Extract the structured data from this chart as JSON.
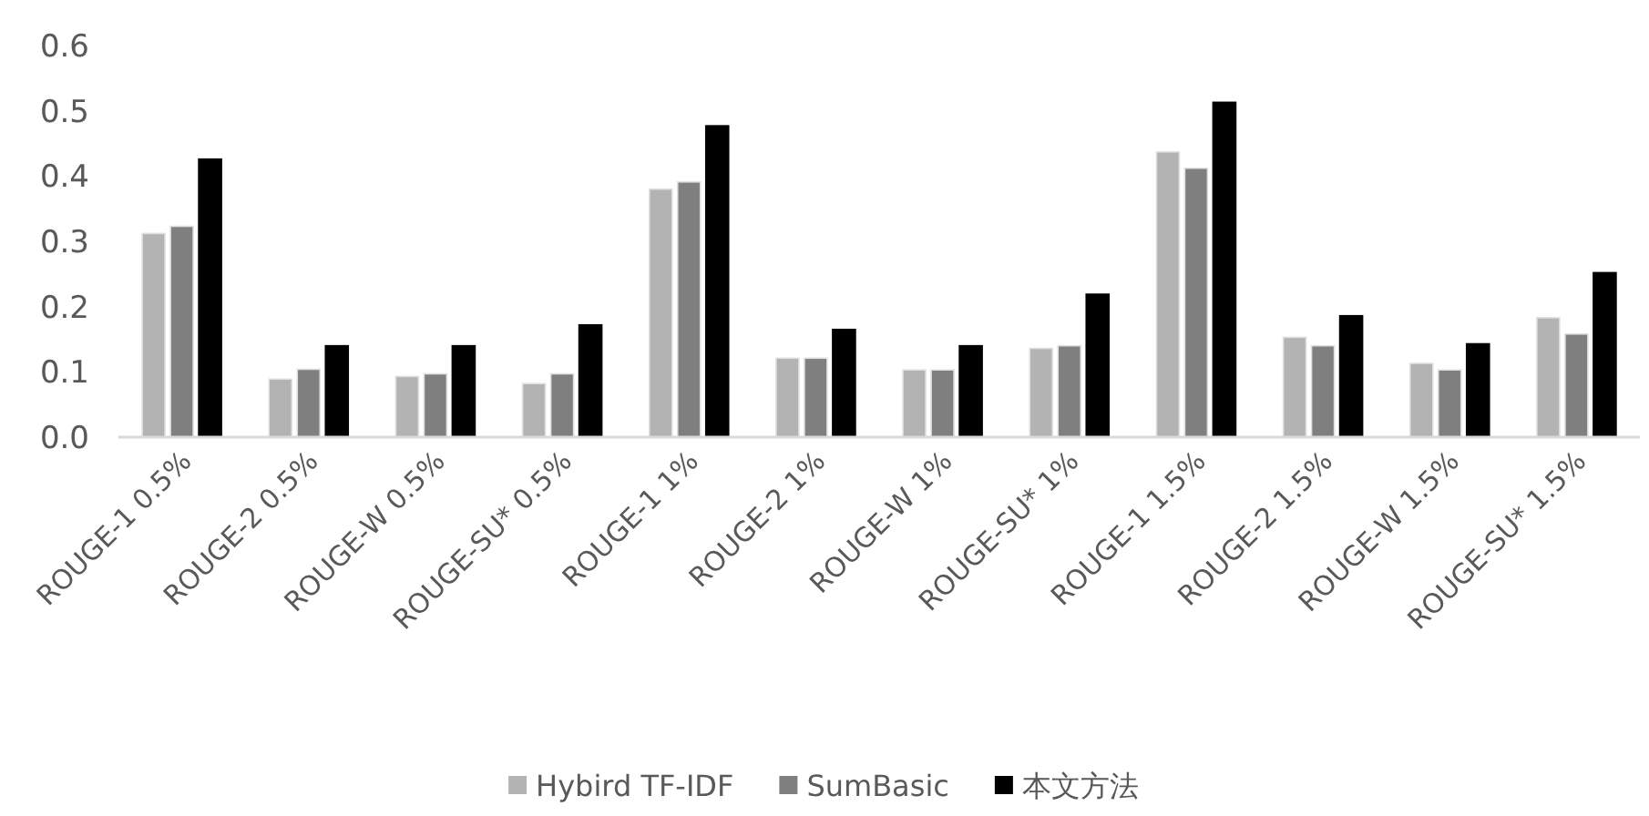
{
  "chart_data": {
    "type": "bar",
    "categories": [
      "ROUGE-1 0.5%",
      "ROUGE-2 0.5%",
      "ROUGE-W 0.5%",
      "ROUGE-SU* 0.5%",
      "ROUGE-1 1%",
      "ROUGE-2 1%",
      "ROUGE-W 1%",
      "ROUGE-SU* 1%",
      "ROUGE-1 1.5%",
      "ROUGE-2 1.5%",
      "ROUGE-W 1.5%",
      "ROUGE-SU* 1.5%"
    ],
    "series": [
      {
        "name": "Hybird TF-IDF",
        "color": "#b3b3b3",
        "values": [
          0.312,
          0.089,
          0.093,
          0.082,
          0.38,
          0.121,
          0.103,
          0.136,
          0.437,
          0.153,
          0.113,
          0.183
        ]
      },
      {
        "name": "SumBasic",
        "color": "#7f7f7f",
        "values": [
          0.323,
          0.104,
          0.097,
          0.097,
          0.391,
          0.121,
          0.103,
          0.14,
          0.412,
          0.14,
          0.103,
          0.158
        ]
      },
      {
        "name": "本文方法",
        "color": "#000000",
        "values": [
          0.426,
          0.14,
          0.14,
          0.172,
          0.477,
          0.165,
          0.14,
          0.219,
          0.513,
          0.186,
          0.143,
          0.252
        ]
      }
    ],
    "ylim": [
      0,
      0.6
    ],
    "yticks": [
      {
        "value": 0,
        "label": "0.0"
      },
      0.1,
      0.2,
      0.3,
      0.4,
      0.5,
      0.6
    ],
    "grid": false,
    "legend": "bottom"
  }
}
